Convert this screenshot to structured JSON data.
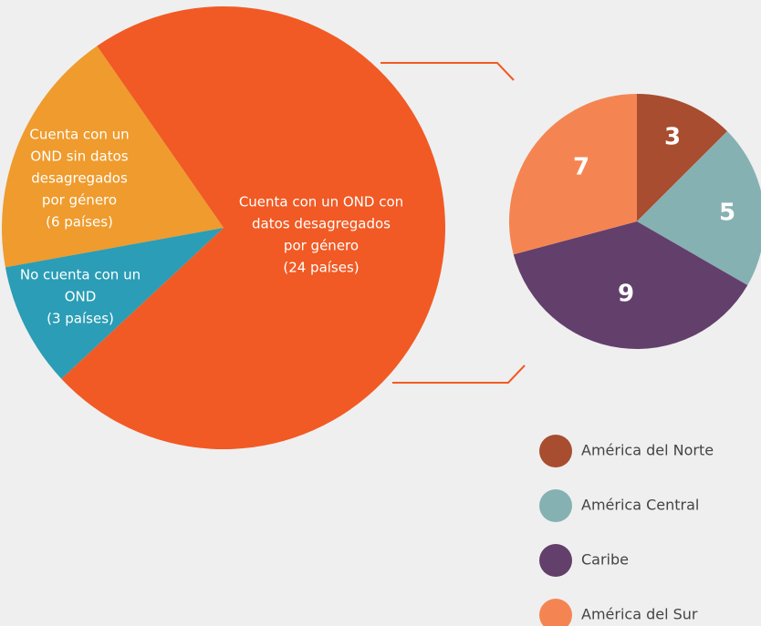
{
  "chart_data": [
    {
      "type": "pie",
      "categories": [
        [
          "Cuenta con un OND con",
          "datos desagregados",
          "por género"
        ],
        [
          "Cuenta con un",
          "OND sin datos",
          "desagregados",
          "por género"
        ],
        [
          "No cuenta con un",
          "OND"
        ]
      ],
      "values": [
        24,
        6,
        3
      ],
      "value_labels": [
        "(24 países)",
        "(6 países)",
        "(3 países)"
      ],
      "colors": [
        "#f15a24",
        "#ef9b2d",
        "#2b9db6"
      ]
    },
    {
      "type": "pie",
      "categories": [
        "América del Norte",
        "América Central",
        "Caribe",
        "América del Sur"
      ],
      "values": [
        3,
        5,
        9,
        7
      ],
      "colors": [
        "#a84d2f",
        "#86b1b3",
        "#633f6b",
        "#f48552"
      ],
      "legend": "bottom-right"
    }
  ]
}
